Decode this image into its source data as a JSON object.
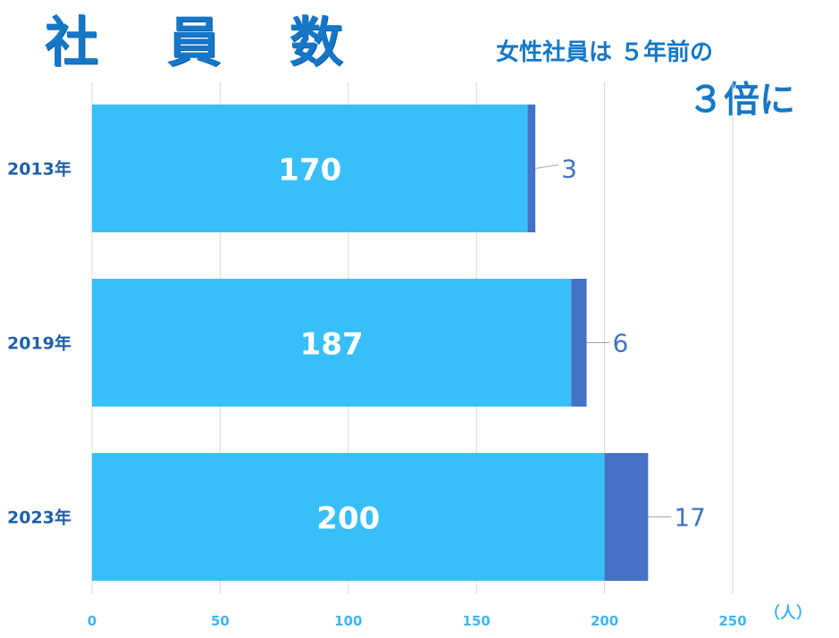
{
  "header": {
    "title": "社 員 数",
    "subtitle_line1": "女性社員は ５年前の",
    "subtitle_line2": "３倍に"
  },
  "unit_label": "（人）",
  "colors": {
    "total_bar": "#38bffa",
    "female_bar": "#4472c4",
    "title": "#1677c7",
    "axis_text": "#3fb6f0",
    "category_text": "#1f5fa8",
    "female_label": "#4472c4",
    "grid": "#d9d9d9"
  },
  "chart_data": {
    "type": "bar",
    "orientation": "horizontal",
    "stacked": true,
    "categories": [
      "2013年",
      "2019年",
      "2023年"
    ],
    "series": [
      {
        "values": [
          170,
          187,
          200
        ]
      },
      {
        "values": [
          3,
          6,
          17
        ]
      }
    ],
    "xlim": [
      0,
      250
    ],
    "x_ticks": [
      0,
      50,
      100,
      150,
      200,
      250
    ],
    "grid": true,
    "legend": "none"
  }
}
